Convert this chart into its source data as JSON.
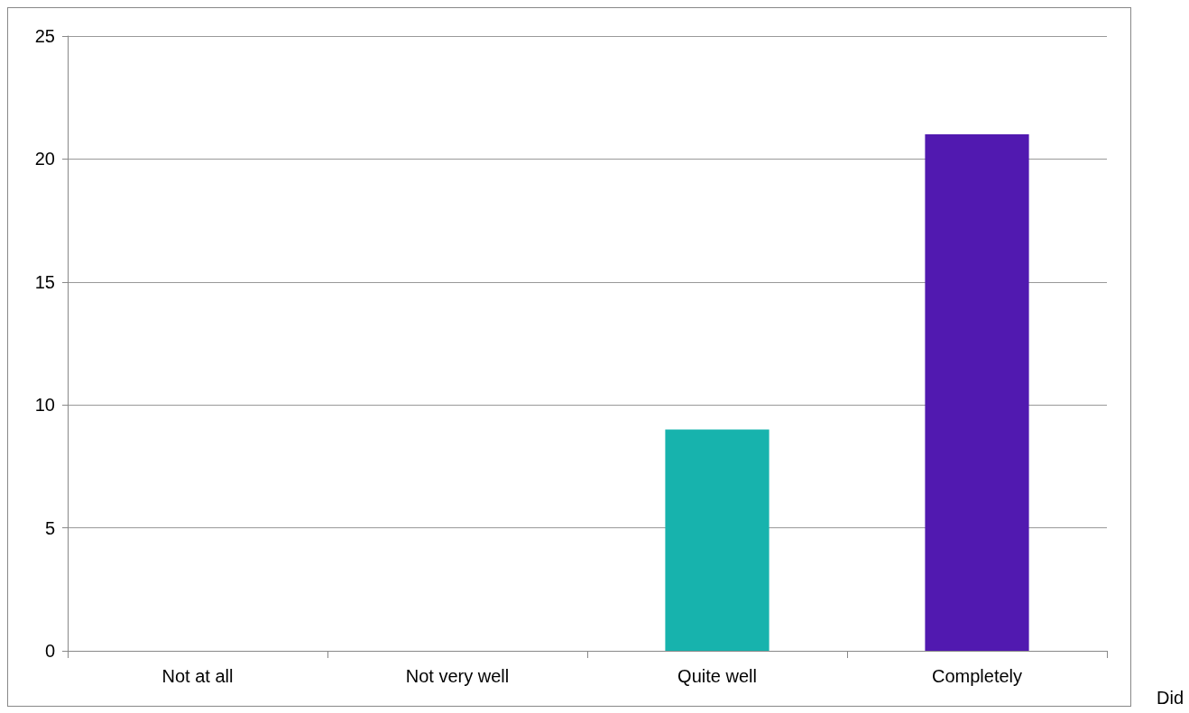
{
  "chart_data": {
    "type": "bar",
    "categories": [
      "Not at all",
      "Not very well",
      "Quite well",
      "Completely"
    ],
    "values": [
      0,
      0,
      9,
      21
    ],
    "colors": [
      "#17b3ad",
      "#17b3ad",
      "#17b3ad",
      "#5119b0"
    ],
    "ylim": [
      0,
      25
    ],
    "yticks": [
      0,
      5,
      10,
      15,
      20,
      25
    ],
    "grid": "y",
    "annotations": [
      "Did"
    ]
  }
}
